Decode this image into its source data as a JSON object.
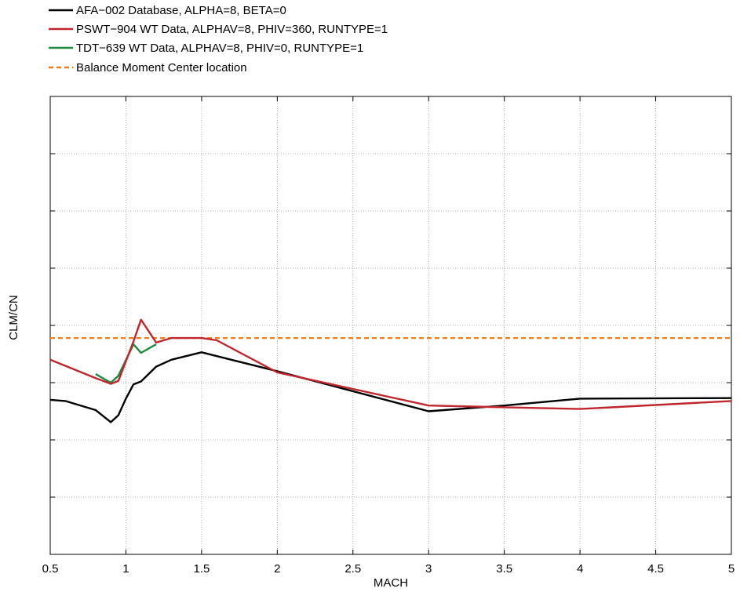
{
  "chart_data": {
    "type": "line",
    "xlabel": "MACH",
    "ylabel": "CLM/CN",
    "xlim": [
      0.5,
      5
    ],
    "xticks": [
      "0.5",
      "1",
      "1.5",
      "2",
      "2.5",
      "3",
      "3.5",
      "4",
      "4.5",
      "5"
    ],
    "ylim": [
      -4,
      4
    ],
    "y_tick_labels_shown": false,
    "grid": true,
    "legend_position": "top-left, outside plot",
    "series": [
      {
        "name": "AFA−002 Database, ALPHA=8, BETA=0",
        "color": "#000000",
        "dash": "solid",
        "x": [
          0.5,
          0.6,
          0.8,
          0.9,
          0.95,
          1.0,
          1.05,
          1.1,
          1.2,
          1.3,
          1.5,
          2.0,
          3.0,
          3.5,
          4.0,
          5.0
        ],
        "y": [
          -1.3,
          -1.32,
          -1.48,
          -1.69,
          -1.57,
          -1.28,
          -1.03,
          -0.98,
          -0.72,
          -0.6,
          -0.47,
          -0.8,
          -1.5,
          -1.4,
          -1.28,
          -1.27
        ]
      },
      {
        "name": "PSWT−904 WT Data, ALPHAV=8, PHIV=360, RUNTYPE=1",
        "color": "#c0262d",
        "dash": "solid",
        "x": [
          0.5,
          0.8,
          0.9,
          0.95,
          1.05,
          1.1,
          1.2,
          1.3,
          1.5,
          1.6,
          2.0,
          3.0,
          3.5,
          4.0,
          5.0
        ],
        "y": [
          -0.6,
          -0.92,
          -1.02,
          -0.97,
          -0.28,
          0.1,
          -0.3,
          -0.22,
          -0.22,
          -0.26,
          -0.82,
          -1.4,
          -1.43,
          -1.46,
          -1.32
        ]
      },
      {
        "name": "TDT−639 WT Data, ALPHAV=8, PHIV=0, RUNTYPE=1",
        "color": "#1f8a3c",
        "dash": "solid",
        "x": [
          0.8,
          0.9,
          0.95,
          1.05,
          1.1,
          1.2
        ],
        "y": [
          -0.85,
          -1.0,
          -0.88,
          -0.33,
          -0.48,
          -0.33
        ]
      },
      {
        "name": "Balance Moment Center location",
        "color": "#f07d1c",
        "dash": "dashed",
        "x": [
          0.5,
          5.0
        ],
        "y": [
          -0.22,
          -0.22
        ]
      }
    ]
  }
}
